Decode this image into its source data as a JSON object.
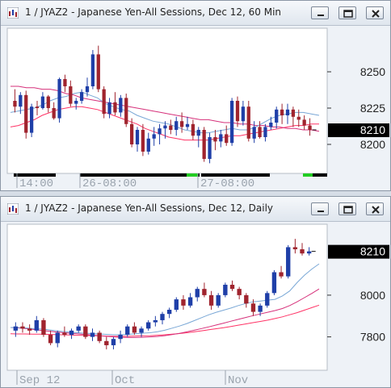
{
  "windows": [
    {
      "title": "1 / JYAZ2 - Japanese Yen-All Sessions, Dec 12, 60 Min",
      "controls": {
        "minimize": "minimize-icon",
        "restore": "restore-icon",
        "close": "close-icon"
      }
    },
    {
      "title": "1 / JYAZ2 - Japanese Yen-All Sessions, Dec 12, Daily",
      "controls": {
        "minimize": "minimize-icon",
        "restore": "restore-icon",
        "close": "close-icon"
      }
    }
  ],
  "colors": {
    "up_candle": "#1f3fa8",
    "down_candle": "#a0242e",
    "ma_fast": "#79a7d6",
    "ma_slow": "#d6307a",
    "ma_long": "#ff3366",
    "last_price_bg": "#000000",
    "last_price_fg": "#ffffff",
    "session_bar": "#000000",
    "session_bar_active": "#22cc22"
  },
  "chart_data": [
    {
      "type": "candlestick",
      "interval": "60 Min",
      "symbol": "JYAZ2",
      "y_ticks": [
        8200,
        8225,
        8250
      ],
      "ylim": [
        8180,
        8280
      ],
      "x_tick_labels": [
        "14:00",
        "26-08:00",
        "27-08:00"
      ],
      "last_price": "8210",
      "candles": [
        [
          8230,
          8238,
          8222,
          8226
        ],
        [
          8226,
          8236,
          8221,
          8234
        ],
        [
          8234,
          8237,
          8204,
          8208
        ],
        [
          8208,
          8228,
          8205,
          8226
        ],
        [
          8226,
          8230,
          8220,
          8225
        ],
        [
          8225,
          8236,
          8224,
          8233
        ],
        [
          8233,
          8234,
          8222,
          8225
        ],
        [
          8225,
          8229,
          8217,
          8218
        ],
        [
          8218,
          8246,
          8215,
          8245
        ],
        [
          8245,
          8248,
          8236,
          8240
        ],
        [
          8240,
          8244,
          8226,
          8228
        ],
        [
          8228,
          8232,
          8224,
          8230
        ],
        [
          8230,
          8238,
          8228,
          8236
        ],
        [
          8236,
          8246,
          8233,
          8240
        ],
        [
          8240,
          8265,
          8238,
          8262
        ],
        [
          8262,
          8268,
          8236,
          8238
        ],
        [
          8238,
          8240,
          8218,
          8221
        ],
        [
          8221,
          8232,
          8218,
          8229
        ],
        [
          8229,
          8236,
          8220,
          8222
        ],
        [
          8222,
          8234,
          8219,
          8232
        ],
        [
          8232,
          8235,
          8212,
          8214
        ],
        [
          8214,
          8218,
          8198,
          8200
        ],
        [
          8200,
          8212,
          8195,
          8210
        ],
        [
          8210,
          8214,
          8192,
          8195
        ],
        [
          8195,
          8208,
          8193,
          8204
        ],
        [
          8204,
          8212,
          8199,
          8207
        ],
        [
          8207,
          8214,
          8200,
          8211
        ],
        [
          8211,
          8216,
          8204,
          8213
        ],
        [
          8213,
          8217,
          8207,
          8210
        ],
        [
          8210,
          8219,
          8206,
          8216
        ],
        [
          8216,
          8222,
          8208,
          8212
        ],
        [
          8212,
          8219,
          8210,
          8214
        ],
        [
          8214,
          8217,
          8203,
          8206
        ],
        [
          8206,
          8212,
          8198,
          8210
        ],
        [
          8210,
          8212,
          8188,
          8190
        ],
        [
          8190,
          8208,
          8187,
          8205
        ],
        [
          8205,
          8210,
          8196,
          8202
        ],
        [
          8202,
          8210,
          8198,
          8207
        ],
        [
          8207,
          8213,
          8199,
          8201
        ],
        [
          8201,
          8232,
          8199,
          8230
        ],
        [
          8230,
          8233,
          8212,
          8216
        ],
        [
          8216,
          8230,
          8213,
          8226
        ],
        [
          8226,
          8230,
          8202,
          8204
        ],
        [
          8204,
          8216,
          8201,
          8212
        ],
        [
          8212,
          8216,
          8204,
          8205
        ],
        [
          8205,
          8214,
          8202,
          8212
        ],
        [
          8212,
          8219,
          8210,
          8215
        ],
        [
          8215,
          8226,
          8211,
          8224
        ],
        [
          8224,
          8228,
          8214,
          8220
        ],
        [
          8220,
          8228,
          8214,
          8224
        ],
        [
          8224,
          8226,
          8212,
          8219
        ],
        [
          8219,
          8224,
          8212,
          8217
        ],
        [
          8217,
          8220,
          8210,
          8213
        ],
        [
          8213,
          8218,
          8206,
          8210
        ]
      ],
      "ma_fast": [
        8222,
        8223,
        8224,
        8225,
        8227,
        8230,
        8232,
        8233,
        8235,
        8236,
        8234,
        8232,
        8228,
        8226,
        8224,
        8223,
        8220,
        8218,
        8216,
        8215,
        8214,
        8212,
        8210,
        8209,
        8208,
        8208,
        8209,
        8210,
        8211,
        8210,
        8210,
        8212,
        8215,
        8218,
        8220,
        8221,
        8222,
        8222,
        8221,
        8220
      ],
      "ma_slow": [
        8240,
        8240,
        8239,
        8239,
        8238,
        8238,
        8237,
        8235,
        8234,
        8232,
        8231,
        8230,
        8229,
        8228,
        8227,
        8226,
        8225,
        8224,
        8223,
        8222,
        8221,
        8220,
        8219,
        8218,
        8217,
        8217,
        8216,
        8215,
        8215,
        8214,
        8214,
        8213,
        8213,
        8212,
        8212,
        8211,
        8211,
        8210,
        8210,
        8209
      ],
      "ma_long": [
        8212,
        8213,
        8215,
        8217,
        8220,
        8222,
        8224,
        8225,
        8226,
        8226,
        8225,
        8224,
        8222,
        8220,
        8218,
        8216,
        8214,
        8211,
        8209,
        8207,
        8205,
        8204,
        8203,
        8203,
        8203,
        8203,
        8204,
        8205,
        8206,
        8206,
        8207,
        8208,
        8209,
        8210,
        8211,
        8212,
        8213,
        8213,
        8214,
        8214
      ]
    },
    {
      "type": "candlestick",
      "interval": "Daily",
      "symbol": "JYAZ2",
      "y_ticks": [
        7800,
        8000
      ],
      "ylim": [
        7640,
        8340
      ],
      "x_tick_labels": [
        "Sep 12",
        "Oct",
        "Nov"
      ],
      "last_price": "8210",
      "candles": [
        [
          7830,
          7870,
          7800,
          7850
        ],
        [
          7850,
          7870,
          7820,
          7840
        ],
        [
          7840,
          7860,
          7810,
          7830
        ],
        [
          7830,
          7900,
          7820,
          7880
        ],
        [
          7880,
          7890,
          7800,
          7810
        ],
        [
          7810,
          7830,
          7760,
          7770
        ],
        [
          7770,
          7830,
          7750,
          7820
        ],
        [
          7820,
          7850,
          7800,
          7810
        ],
        [
          7810,
          7840,
          7790,
          7830
        ],
        [
          7830,
          7860,
          7820,
          7850
        ],
        [
          7850,
          7860,
          7790,
          7800
        ],
        [
          7800,
          7840,
          7780,
          7820
        ],
        [
          7820,
          7830,
          7770,
          7780
        ],
        [
          7780,
          7800,
          7740,
          7760
        ],
        [
          7760,
          7800,
          7740,
          7790
        ],
        [
          7790,
          7830,
          7770,
          7810
        ],
        [
          7810,
          7860,
          7800,
          7850
        ],
        [
          7850,
          7870,
          7810,
          7820
        ],
        [
          7820,
          7850,
          7800,
          7840
        ],
        [
          7840,
          7880,
          7830,
          7870
        ],
        [
          7870,
          7900,
          7850,
          7880
        ],
        [
          7880,
          7920,
          7860,
          7910
        ],
        [
          7910,
          7940,
          7890,
          7930
        ],
        [
          7930,
          7990,
          7920,
          7980
        ],
        [
          7980,
          8000,
          7930,
          7950
        ],
        [
          7950,
          8010,
          7940,
          7990
        ],
        [
          7990,
          8040,
          7970,
          8030
        ],
        [
          8030,
          8060,
          7990,
          8000
        ],
        [
          8000,
          8020,
          7930,
          7950
        ],
        [
          7950,
          8010,
          7940,
          8000
        ],
        [
          8000,
          8060,
          7990,
          8050
        ],
        [
          8050,
          8070,
          8020,
          8030
        ],
        [
          8030,
          8040,
          7980,
          8000
        ],
        [
          8000,
          8010,
          7940,
          7960
        ],
        [
          7960,
          7980,
          7900,
          7920
        ],
        [
          7920,
          7960,
          7900,
          7950
        ],
        [
          7950,
          8020,
          7940,
          8010
        ],
        [
          8010,
          8120,
          8000,
          8110
        ],
        [
          8110,
          8140,
          8080,
          8090
        ],
        [
          8090,
          8240,
          8080,
          8230
        ],
        [
          8230,
          8270,
          8200,
          8220
        ],
        [
          8220,
          8250,
          8190,
          8200
        ],
        [
          8200,
          8230,
          8190,
          8210
        ]
      ],
      "ma_fast": [
        7845,
        7845,
        7843,
        7840,
        7838,
        7835,
        7830,
        7826,
        7823,
        7820,
        7818,
        7816,
        7814,
        7812,
        7810,
        7810,
        7812,
        7815,
        7818,
        7820,
        7825,
        7832,
        7842,
        7852,
        7864,
        7878,
        7892,
        7906,
        7918,
        7928,
        7938,
        7950,
        7960,
        7968,
        7972,
        7976,
        7980,
        7996,
        8020,
        8060,
        8095,
        8125,
        8150
      ],
      "ma_slow": [
        7845,
        7843,
        7840,
        7836,
        7832,
        7828,
        7824,
        7821,
        7818,
        7815,
        7812,
        7809,
        7806,
        7803,
        7800,
        7798,
        7797,
        7797,
        7798,
        7800,
        7802,
        7806,
        7811,
        7817,
        7824,
        7832,
        7840,
        7848,
        7857,
        7866,
        7875,
        7884,
        7893,
        7902,
        7910,
        7918,
        7926,
        7936,
        7950,
        7968,
        7988,
        8008,
        8030
      ],
      "ma_long": [
        7815,
        7814,
        7814,
        7813,
        7813,
        7812,
        7811,
        7810,
        7809,
        7808,
        7807,
        7806,
        7805,
        7804,
        7803,
        7803,
        7803,
        7804,
        7805,
        7806,
        7808,
        7810,
        7813,
        7816,
        7820,
        7824,
        7829,
        7834,
        7839,
        7844,
        7850,
        7856,
        7862,
        7868,
        7874,
        7880,
        7888,
        7896,
        7906,
        7916,
        7928,
        7940,
        7952
      ]
    }
  ]
}
